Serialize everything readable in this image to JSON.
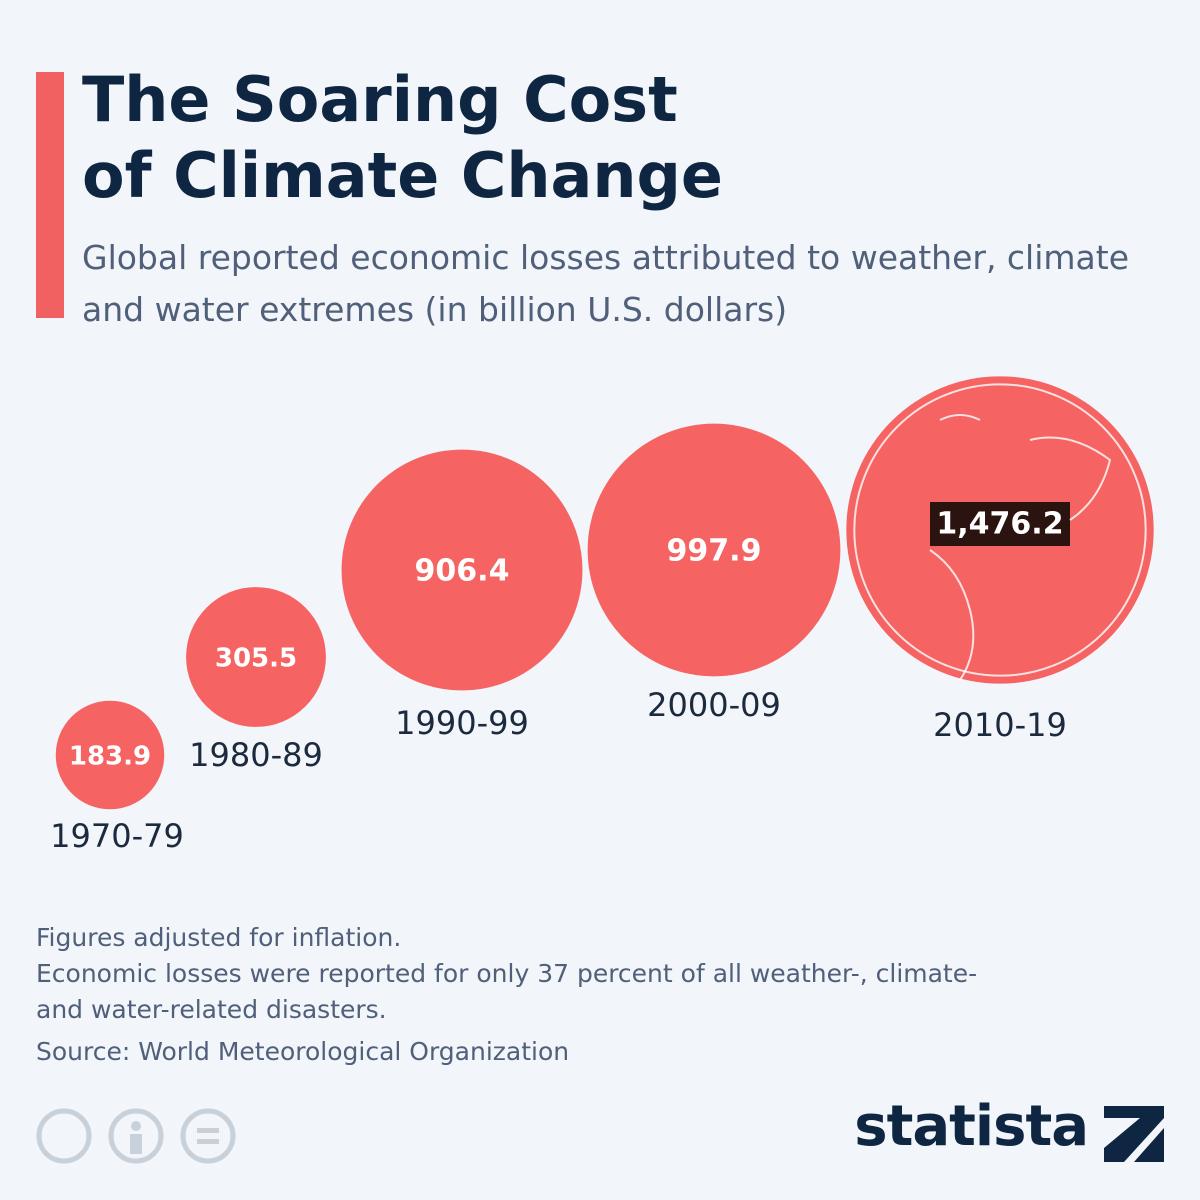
{
  "chart_data": {
    "type": "bubble",
    "title": "The Soaring Cost of Climate Change",
    "subtitle": "Global reported economic losses attributed to weather, climate and water extremes (in billion U.S. dollars)",
    "categories": [
      "1970-79",
      "1980-89",
      "1990-99",
      "2000-09",
      "2010-19"
    ],
    "values": [
      183.9,
      305.5,
      906.4,
      997.9,
      1476.2
    ],
    "value_labels": [
      "183.9",
      "305.5",
      "906.4",
      "997.9",
      "1,476.2"
    ],
    "color": "#f56363",
    "notes": [
      "Figures adjusted for inflation.",
      "Economic losses were reported for only 37 percent of all weather-, climate- and water-related disasters."
    ],
    "source": "Source: World Meteorological Organization",
    "brand": "statista"
  }
}
